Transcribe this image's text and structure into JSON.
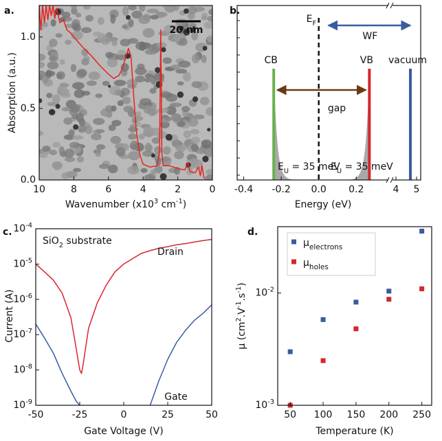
{
  "panel_labels": [
    "a.",
    "b.",
    "c.",
    "d."
  ],
  "chart_data": [
    {
      "type": "line",
      "xlabel": [
        {
          "text": "Wavenumber (x10"
        },
        {
          "sup": "3"
        },
        {
          "text": " cm"
        },
        {
          "sup": "-1"
        },
        {
          "text": ")"
        }
      ],
      "ylabel": [
        {
          "text": "Absorption (a.u.)"
        }
      ],
      "scale_bar": "20 nm",
      "color": "#e8221c",
      "xlim": [
        10,
        0
      ],
      "ylim": [
        0,
        1.22
      ],
      "xticks": [
        10,
        8,
        6,
        4,
        2,
        0
      ],
      "yticks": [
        {
          "value": 0,
          "label": "0.0"
        },
        {
          "value": 0.5,
          "label": "0.5"
        },
        {
          "value": 1,
          "label": "1.0"
        }
      ],
      "x": [
        10,
        9.9,
        9.8,
        9.7,
        9.6,
        9.5,
        9.4,
        9.3,
        9.2,
        9.1,
        9.0,
        8.8,
        8.6,
        8.4,
        8.2,
        8.0,
        7.5,
        7.0,
        6.5,
        6.0,
        5.7,
        5.4,
        5.2,
        5.0,
        4.85,
        4.7,
        4.55,
        4.4,
        4.2,
        4.0,
        3.6,
        3.2,
        3.05,
        2.98,
        2.92,
        2.85,
        2.5,
        2.0,
        1.6,
        1.4,
        1.3,
        1.0,
        0.8,
        0.7,
        0.6,
        0.5,
        0.45
      ],
      "values": [
        1.22,
        1.05,
        1.22,
        1.1,
        1.22,
        1.12,
        1.22,
        1.15,
        1.22,
        1.13,
        1.2,
        1.1,
        1.12,
        1.05,
        1.03,
        1.0,
        0.93,
        0.87,
        0.8,
        0.74,
        0.71,
        0.73,
        0.78,
        0.86,
        0.92,
        0.86,
        0.6,
        0.35,
        0.18,
        0.11,
        0.09,
        0.1,
        0.2,
        1.05,
        0.2,
        0.1,
        0.1,
        0.08,
        0.07,
        0.12,
        0.06,
        0.05,
        0.09,
        0.03,
        0.1,
        0.02,
        0.01
      ]
    },
    {
      "type": "energy-levels",
      "xlabel": [
        {
          "text": "Energy (eV)"
        }
      ],
      "xlim": [
        -0.435,
        5.2
      ],
      "xbreak": [
        0.375,
        3.8
      ],
      "xticks": [
        -0.4,
        -0.2,
        {
          "value": 0,
          "label": "0.0"
        },
        0.2,
        4,
        5
      ],
      "fermi_level": {
        "label": [
          {
            "text": "E"
          },
          {
            "sub": "F"
          }
        ],
        "value": 0
      },
      "levels": [
        {
          "name": "CB",
          "value": -0.24,
          "color": "#6ab04c"
        },
        {
          "name": "VB",
          "value": 0.27,
          "color": "#d6262d"
        },
        {
          "name": "vacuum",
          "value": 4.7,
          "color": "#3a5ba0"
        }
      ],
      "work_function": "WF",
      "work_function_color": "#3a5ba0",
      "gap": "gap",
      "gap_color": "#6b3a12",
      "urbach": [
        [
          {
            "text": "E"
          },
          {
            "sub": "U"
          },
          {
            "text": " = 35 meV"
          }
        ],
        [
          {
            "text": "E"
          },
          {
            "sub": "U"
          },
          {
            "text": " = 35 meV"
          }
        ]
      ]
    },
    {
      "type": "line",
      "log_y": true,
      "xlabel": [
        {
          "text": "Gate Voltage (V)"
        }
      ],
      "ylabel": [
        {
          "text": "Current (A)"
        }
      ],
      "annotation": [
        {
          "text": "SiO"
        },
        {
          "sub": "2"
        },
        {
          "text": " substrate"
        }
      ],
      "xlim": [
        -50,
        50
      ],
      "ylim": [
        1e-09,
        0.0001
      ],
      "xticks": [
        -50,
        -25,
        0,
        25,
        50
      ],
      "yticks": [
        {
          "value": 1e-09,
          "label": "10",
          "exponent": "-9"
        },
        {
          "value": 1e-08,
          "label": "10",
          "exponent": "-8"
        },
        {
          "value": 1e-07,
          "label": "10",
          "exponent": "-7"
        },
        {
          "value": 1e-06,
          "label": "10",
          "exponent": "-6"
        },
        {
          "value": 1e-05,
          "label": "10",
          "exponent": "-5"
        },
        {
          "value": 0.0001,
          "label": "10",
          "exponent": "-4"
        }
      ],
      "x": [
        -50,
        -45,
        -40,
        -35,
        -30,
        -27,
        -25,
        -24,
        -23,
        -20,
        -15,
        -10,
        -5,
        0,
        10,
        15,
        20,
        25,
        30,
        35,
        40,
        45,
        50
      ],
      "series": [
        {
          "name": "Drain",
          "color": "#d6262d",
          "values": [
            1e-05,
            6e-06,
            3.5e-06,
            1.5e-06,
            3e-07,
            4e-08,
            1e-08,
            8e-09,
            1.5e-08,
            1.5e-07,
            8e-07,
            2.5e-06,
            6e-06,
            1e-05,
            2e-05,
            2.4e-05,
            2.8e-05,
            3.1e-05,
            3.5e-05,
            3.8e-05,
            4.2e-05,
            4.6e-05,
            5e-05
          ]
        },
        {
          "name": "Gate",
          "color": "#3a5ba0",
          "values": [
            2e-07,
            8e-08,
            3e-08,
            8e-09,
            2.5e-09,
            1.3e-09,
            1e-09,
            null,
            null,
            null,
            null,
            null,
            null,
            null,
            null,
            1e-09,
            5e-09,
            2e-08,
            6e-08,
            1.3e-07,
            2.5e-07,
            4e-07,
            7e-07
          ]
        }
      ]
    },
    {
      "type": "scatter",
      "log_y": true,
      "xlabel": [
        {
          "text": "Temperature (K)"
        }
      ],
      "ylabel": [
        {
          "text": "μ (cm"
        },
        {
          "sup": "2"
        },
        {
          "text": ".V"
        },
        {
          "sup": "-1"
        },
        {
          "text": ".s"
        },
        {
          "sup": "-1"
        },
        {
          "text": ")"
        }
      ],
      "xlim": [
        31,
        265
      ],
      "ylim": [
        0.001,
        0.039
      ],
      "xticks": [
        50,
        100,
        150,
        200,
        250
      ],
      "yticks": [
        {
          "value": 0.001,
          "label": "10",
          "exponent": "-3"
        },
        {
          "value": 0.01,
          "label": "10",
          "exponent": "-2"
        }
      ],
      "x": [
        50,
        100,
        150,
        200,
        250
      ],
      "series": [
        {
          "name": "μ",
          "name_sub": "electrons",
          "color": "#3a5ba0",
          "values": [
            0.003,
            0.0058,
            0.0083,
            0.0104,
            0.0356
          ]
        },
        {
          "name": "μ",
          "name_sub": "holes",
          "color": "#d6262d",
          "values": [
            0.001,
            0.0025,
            0.0048,
            0.0088,
            0.0109
          ]
        }
      ]
    }
  ]
}
